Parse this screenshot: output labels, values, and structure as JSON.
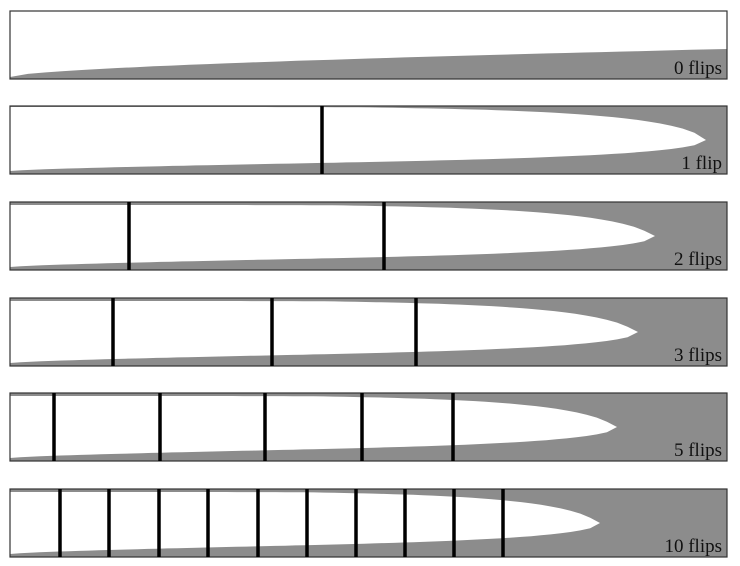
{
  "figure": {
    "fill_color": "#8c8c8c",
    "background_color": "#ffffff",
    "border_color": "#333333",
    "flip_line_color": "#000000"
  },
  "panels": [
    {
      "label": "0 flips",
      "flip_count": 0
    },
    {
      "label": "1 flip",
      "flip_count": 1
    },
    {
      "label": "2 flips",
      "flip_count": 2
    },
    {
      "label": "3 flips",
      "flip_count": 3
    },
    {
      "label": "5 flips",
      "flip_count": 5
    },
    {
      "label": "10 flips",
      "flip_count": 10
    }
  ]
}
